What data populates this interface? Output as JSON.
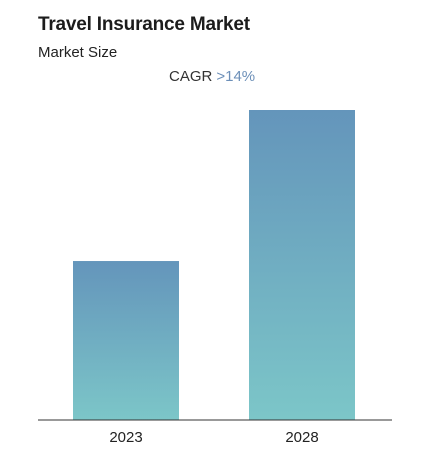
{
  "header": {
    "title": "Travel Insurance Market",
    "subtitle": "Market Size",
    "cagr_label": "CAGR",
    "cagr_value": ">14%"
  },
  "colors": {
    "bar_top": "#6495bb",
    "bar_bottom": "#7cc6c8",
    "cagr_accent": "#6c8fb8",
    "baseline": "#333333"
  },
  "chart_data": {
    "type": "bar",
    "title": "Travel Insurance Market",
    "subtitle": "Market Size",
    "categories": [
      "2023",
      "2028"
    ],
    "values": [
      1,
      1.95
    ],
    "xlabel": "",
    "ylabel": "",
    "ylim": [
      0,
      1.95
    ],
    "grid": false,
    "legend": "none",
    "annotations": [
      "CAGR >14%"
    ]
  }
}
